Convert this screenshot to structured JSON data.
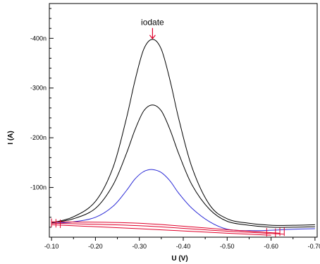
{
  "chart_data": {
    "type": "line",
    "xlabel": "U (V)",
    "ylabel": "I (A)",
    "x_tick_labels": [
      "-0.10",
      "-0.20",
      "-0.30",
      "-0.40",
      "-0.50",
      "-0.60",
      "-0.70"
    ],
    "x_ticks": [
      -0.1,
      -0.2,
      -0.3,
      -0.4,
      -0.5,
      -0.6,
      -0.7
    ],
    "y_tick_labels": [
      "-100n",
      "-200n",
      "-300n",
      "-400n"
    ],
    "y_ticks": [
      -100,
      -200,
      -300,
      -400
    ],
    "y_unit": "nA",
    "xlim": [
      -0.095,
      -0.705
    ],
    "ylim": [
      0,
      -470
    ],
    "annotation": {
      "text": "iodate",
      "x": -0.33,
      "y": -398,
      "arrow_color": "#e0002a"
    },
    "colors": {
      "black": "#000000",
      "blue": "#2b2bd6",
      "red": "#e0002a"
    },
    "series": [
      {
        "color": "#000000",
        "x": [
          -0.1,
          -0.15,
          -0.2,
          -0.24,
          -0.27,
          -0.29,
          -0.31,
          -0.33,
          -0.35,
          -0.37,
          -0.39,
          -0.42,
          -0.46,
          -0.5,
          -0.55,
          -0.6,
          -0.65,
          -0.7
        ],
        "y": [
          -29,
          -41,
          -72,
          -140,
          -237,
          -315,
          -378,
          -398,
          -378,
          -315,
          -237,
          -140,
          -65,
          -37,
          -28,
          -24,
          -24,
          -25
        ]
      },
      {
        "color": "#000000",
        "x": [
          -0.1,
          -0.15,
          -0.2,
          -0.24,
          -0.27,
          -0.29,
          -0.31,
          -0.33,
          -0.35,
          -0.37,
          -0.39,
          -0.42,
          -0.46,
          -0.5,
          -0.55,
          -0.6,
          -0.65,
          -0.7
        ],
        "y": [
          -29,
          -37,
          -58,
          -105,
          -167,
          -216,
          -254,
          -266,
          -254,
          -216,
          -167,
          -105,
          -56,
          -32,
          -24,
          -20,
          -20,
          -21
        ]
      },
      {
        "color": "#2b2bd6",
        "x": [
          -0.1,
          -0.15,
          -0.2,
          -0.24,
          -0.27,
          -0.29,
          -0.31,
          -0.33,
          -0.35,
          -0.37,
          -0.39,
          -0.42,
          -0.46,
          -0.5,
          -0.55,
          -0.6,
          -0.65,
          -0.7
        ],
        "y": [
          -28,
          -31,
          -40,
          -62,
          -93,
          -117,
          -132,
          -136,
          -130,
          -113,
          -88,
          -58,
          -31,
          -16,
          -13,
          -14,
          -16,
          -17
        ]
      },
      {
        "color": "#e0002a",
        "x": [
          -0.1,
          -0.3,
          -0.5,
          -0.62
        ],
        "y": [
          -31,
          -28,
          -15,
          -8
        ]
      },
      {
        "color": "#e0002a",
        "x": [
          -0.1,
          -0.3,
          -0.5,
          -0.63
        ],
        "y": [
          -28,
          -23,
          -12,
          -6
        ]
      },
      {
        "color": "#e0002a",
        "x": [
          -0.1,
          -0.3,
          -0.5,
          -0.6
        ],
        "y": [
          -25,
          -17,
          -8,
          -4
        ]
      }
    ],
    "baseline_markers": [
      {
        "x": -0.1,
        "y": -29
      },
      {
        "x": -0.11,
        "y": -28
      },
      {
        "x": -0.12,
        "y": -27
      },
      {
        "x": -0.59,
        "y": -10
      },
      {
        "x": -0.61,
        "y": -9
      },
      {
        "x": -0.62,
        "y": -11
      },
      {
        "x": -0.63,
        "y": -11
      }
    ],
    "grid": false
  }
}
